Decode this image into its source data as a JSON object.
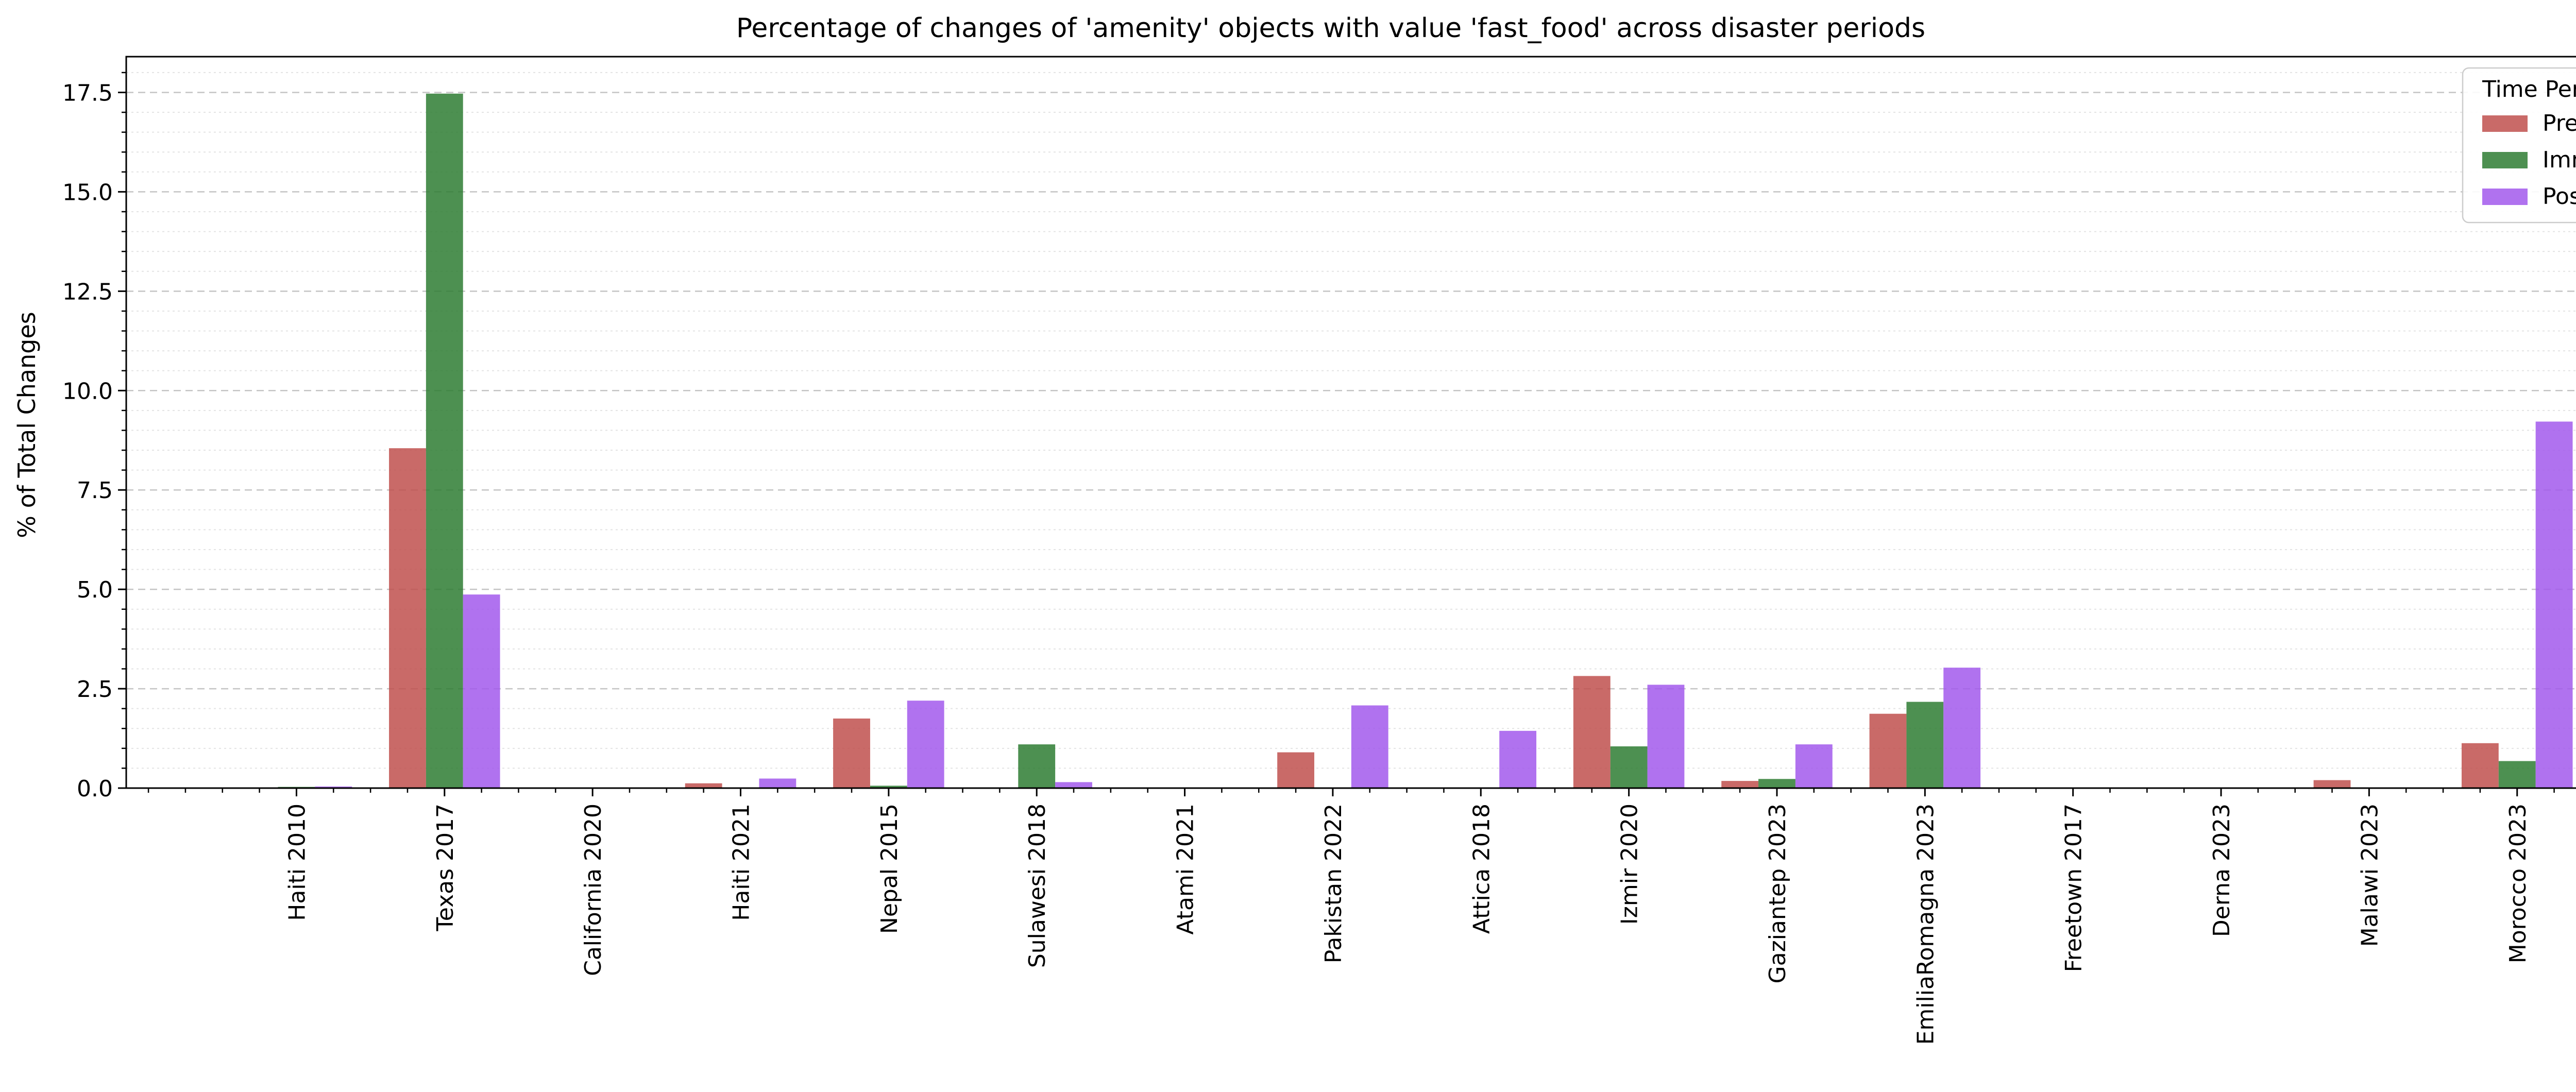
{
  "chart_data": {
    "type": "bar",
    "title": "Percentage of changes of 'amenity' objects with value 'fast_food' across disaster periods",
    "xlabel": "",
    "ylabel": "% of Total Changes",
    "ylim": [
      0,
      18.4
    ],
    "yticks": [
      "0.0",
      "2.5",
      "5.0",
      "7.5",
      "10.0",
      "12.5",
      "15.0",
      "17.5"
    ],
    "grid": true,
    "legend": {
      "title": "Time Period",
      "position": "top-right"
    },
    "categories": [
      "Haiti 2010",
      "Texas 2017",
      "California 2020",
      "Haiti 2021",
      "Nepal 2015",
      "Sulawesi 2018",
      "Atami 2021",
      "Pakistan 2022",
      "Attica 2018",
      "Izmir 2020",
      "Gaziantep 2023",
      "EmiliaRomagna 2023",
      "Freetown 2017",
      "Derna 2023",
      "Malawi 2023",
      "Morocco 2023"
    ],
    "series": [
      {
        "name": "Pre",
        "color": "#c0504d",
        "values": [
          0.0,
          8.55,
          0.0,
          0.12,
          1.75,
          0.0,
          0.0,
          0.9,
          0.0,
          2.82,
          0.18,
          1.87,
          0.0,
          0.0,
          0.2,
          1.13
        ]
      },
      {
        "name": "Imm",
        "color": "#2e7d32",
        "values": [
          0.03,
          17.47,
          0.0,
          0.0,
          0.06,
          1.1,
          0.0,
          0.0,
          0.0,
          1.05,
          0.23,
          2.17,
          0.0,
          0.0,
          0.0,
          0.68
        ]
      },
      {
        "name": "Post",
        "color": "#a259ec",
        "values": [
          0.04,
          4.87,
          0.0,
          0.24,
          2.2,
          0.15,
          0.0,
          2.08,
          1.44,
          2.6,
          1.1,
          3.03,
          0.0,
          0.0,
          0.0,
          9.22
        ]
      }
    ]
  }
}
